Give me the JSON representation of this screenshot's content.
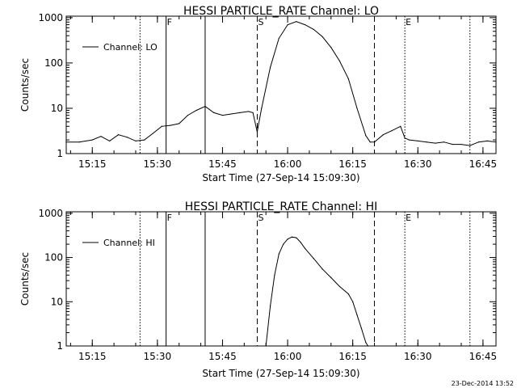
{
  "footer": {
    "timestamp": "23-Dec-2014 13:52"
  },
  "chart_data": [
    {
      "type": "line",
      "title": "HESSI PARTICLE_RATE Channel: LO",
      "xlabel": "Start Time (27-Sep-14 15:09:30)",
      "ylabel": "Counts/sec",
      "yscale": "log",
      "xlim": [
        "15:09",
        "16:48"
      ],
      "ylim": [
        1,
        1000
      ],
      "xticks": [
        "15:15",
        "15:30",
        "15:45",
        "16:00",
        "16:15",
        "16:30",
        "16:45"
      ],
      "yticks": [
        "1",
        "10",
        "100",
        "1000"
      ],
      "legend": {
        "label": "Channel: LO",
        "position": "top-left"
      },
      "markers": [
        {
          "label": "F",
          "time": "15:32",
          "style": "solid"
        },
        {
          "label": "S",
          "time": "15:53",
          "style": "dashed"
        },
        {
          "label": "E",
          "time": "16:27",
          "style": "dotted"
        }
      ],
      "vlines": [
        {
          "time": "15:26",
          "style": "dotted"
        },
        {
          "time": "15:32",
          "style": "solid"
        },
        {
          "time": "15:41",
          "style": "solid"
        },
        {
          "time": "15:53",
          "style": "dashed"
        },
        {
          "time": "16:20",
          "style": "dashed"
        },
        {
          "time": "16:27",
          "style": "dotted"
        },
        {
          "time": "16:42",
          "style": "dotted"
        }
      ],
      "series": [
        {
          "name": "Channel: LO",
          "x": [
            "15:09",
            "15:12",
            "15:15",
            "15:17",
            "15:19",
            "15:21",
            "15:23",
            "15:25",
            "15:27",
            "15:29",
            "15:31",
            "15:33",
            "15:35",
            "15:37",
            "15:39",
            "15:41",
            "15:43",
            "15:45",
            "15:47",
            "15:49",
            "15:51",
            "15:52",
            "15:53",
            "15:54",
            "15:56",
            "15:58",
            "16:00",
            "16:02",
            "16:04",
            "16:06",
            "16:08",
            "16:10",
            "16:12",
            "16:14",
            "16:16",
            "16:18",
            "16:19",
            "16:20",
            "16:22",
            "16:24",
            "16:26",
            "16:27",
            "16:28",
            "16:30",
            "16:32",
            "16:34",
            "16:36",
            "16:38",
            "16:40",
            "16:42",
            "16:44",
            "16:46",
            "16:48"
          ],
          "y": [
            1.8,
            1.8,
            2.0,
            2.4,
            1.9,
            2.6,
            2.3,
            1.9,
            2.0,
            2.8,
            4.0,
            4.2,
            4.6,
            7.0,
            9.0,
            11.0,
            8.0,
            7.0,
            7.5,
            8.0,
            8.5,
            8.0,
            3.0,
            10,
            80,
            350,
            700,
            820,
            700,
            550,
            380,
            220,
            110,
            45,
            10,
            2.5,
            1.8,
            1.8,
            2.6,
            3.2,
            4.0,
            2.2,
            2.0,
            1.9,
            1.8,
            1.7,
            1.8,
            1.6,
            1.6,
            1.5,
            1.8,
            1.9,
            1.8
          ]
        }
      ]
    },
    {
      "type": "line",
      "title": "HESSI PARTICLE_RATE Channel: HI",
      "xlabel": "Start Time (27-Sep-14 15:09:30)",
      "ylabel": "Counts/sec",
      "yscale": "log",
      "xlim": [
        "15:09",
        "16:48"
      ],
      "ylim": [
        1,
        1000
      ],
      "xticks": [
        "15:15",
        "15:30",
        "15:45",
        "16:00",
        "16:15",
        "16:30",
        "16:45"
      ],
      "yticks": [
        "1",
        "10",
        "100",
        "1000"
      ],
      "legend": {
        "label": "Channel: HI",
        "position": "top-left"
      },
      "markers": [
        {
          "label": "F",
          "time": "15:32",
          "style": "solid"
        },
        {
          "label": "S",
          "time": "15:53",
          "style": "dashed"
        },
        {
          "label": "E",
          "time": "16:27",
          "style": "dotted"
        }
      ],
      "vlines": [
        {
          "time": "15:26",
          "style": "dotted"
        },
        {
          "time": "15:32",
          "style": "solid"
        },
        {
          "time": "15:41",
          "style": "solid"
        },
        {
          "time": "15:53",
          "style": "dashed"
        },
        {
          "time": "16:20",
          "style": "dashed"
        },
        {
          "time": "16:27",
          "style": "dotted"
        },
        {
          "time": "16:42",
          "style": "dotted"
        }
      ],
      "series": [
        {
          "name": "Channel: HI",
          "x": [
            "15:55",
            "15:56",
            "15:57",
            "15:58",
            "15:59",
            "16:00",
            "16:01",
            "16:02",
            "16:03",
            "16:04",
            "16:06",
            "16:08",
            "16:10",
            "16:12",
            "16:14",
            "16:15",
            "16:16",
            "16:17",
            "16:18",
            "16:18.5"
          ],
          "y": [
            1,
            8,
            40,
            120,
            200,
            260,
            290,
            280,
            220,
            160,
            95,
            55,
            35,
            22,
            15,
            10,
            5,
            2.5,
            1.2,
            1
          ]
        }
      ]
    }
  ]
}
